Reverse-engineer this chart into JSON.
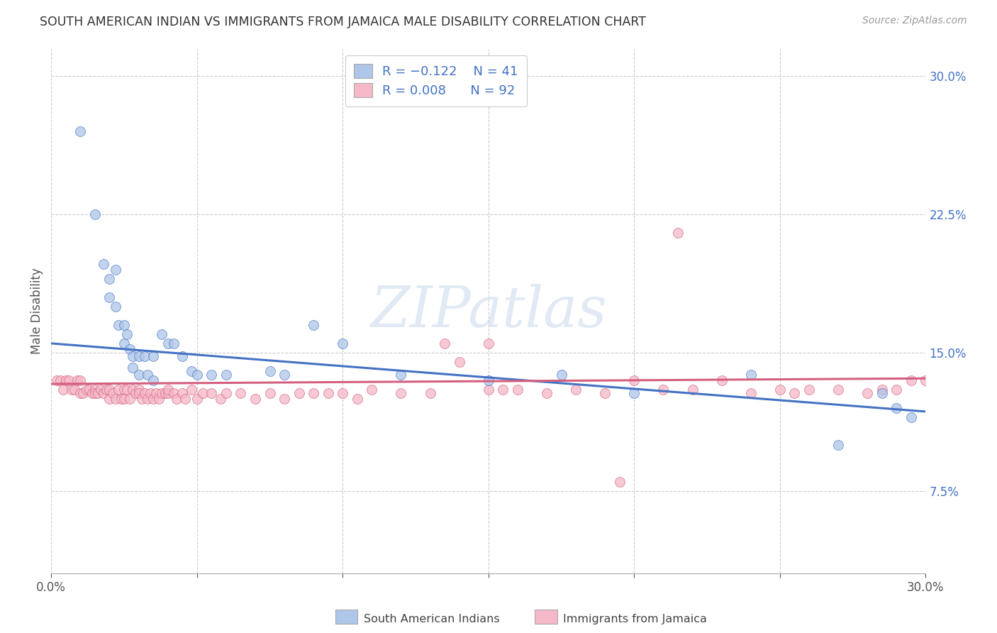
{
  "title": "SOUTH AMERICAN INDIAN VS IMMIGRANTS FROM JAMAICA MALE DISABILITY CORRELATION CHART",
  "source": "Source: ZipAtlas.com",
  "ylabel": "Male Disability",
  "xlim": [
    0.0,
    0.3
  ],
  "ylim": [
    0.03,
    0.315
  ],
  "yticks": [
    0.075,
    0.15,
    0.225,
    0.3
  ],
  "ytick_labels": [
    "7.5%",
    "15.0%",
    "22.5%",
    "30.0%"
  ],
  "xticks": [
    0.0,
    0.05,
    0.1,
    0.15,
    0.2,
    0.25,
    0.3
  ],
  "color_blue": "#aec6e8",
  "color_pink": "#f5b8c8",
  "line_color_blue": "#4472c4",
  "line_color_pink": "#d45f7e",
  "watermark": "ZIPatlas",
  "legend_label1": "South American Indians",
  "legend_label2": "Immigrants from Jamaica",
  "blue_line": [
    0.155,
    0.118
  ],
  "pink_line": [
    0.133,
    0.136
  ],
  "blue_x": [
    0.01,
    0.015,
    0.018,
    0.02,
    0.02,
    0.022,
    0.022,
    0.023,
    0.025,
    0.025,
    0.026,
    0.027,
    0.028,
    0.028,
    0.03,
    0.03,
    0.032,
    0.033,
    0.035,
    0.035,
    0.038,
    0.04,
    0.042,
    0.045,
    0.048,
    0.05,
    0.055,
    0.06,
    0.075,
    0.08,
    0.09,
    0.1,
    0.12,
    0.15,
    0.175,
    0.2,
    0.24,
    0.27,
    0.285,
    0.29,
    0.295
  ],
  "blue_y": [
    0.27,
    0.225,
    0.198,
    0.19,
    0.18,
    0.195,
    0.175,
    0.165,
    0.165,
    0.155,
    0.16,
    0.152,
    0.148,
    0.142,
    0.148,
    0.138,
    0.148,
    0.138,
    0.148,
    0.135,
    0.16,
    0.155,
    0.155,
    0.148,
    0.14,
    0.138,
    0.138,
    0.138,
    0.14,
    0.138,
    0.165,
    0.155,
    0.138,
    0.135,
    0.138,
    0.128,
    0.138,
    0.1,
    0.128,
    0.12,
    0.115
  ],
  "pink_x": [
    0.002,
    0.003,
    0.004,
    0.005,
    0.006,
    0.007,
    0.008,
    0.009,
    0.01,
    0.01,
    0.011,
    0.012,
    0.013,
    0.014,
    0.015,
    0.015,
    0.016,
    0.017,
    0.018,
    0.019,
    0.02,
    0.02,
    0.021,
    0.022,
    0.023,
    0.024,
    0.025,
    0.025,
    0.026,
    0.027,
    0.028,
    0.029,
    0.03,
    0.03,
    0.031,
    0.032,
    0.033,
    0.034,
    0.035,
    0.036,
    0.037,
    0.038,
    0.039,
    0.04,
    0.04,
    0.042,
    0.043,
    0.045,
    0.046,
    0.048,
    0.05,
    0.052,
    0.055,
    0.058,
    0.06,
    0.065,
    0.07,
    0.075,
    0.08,
    0.085,
    0.09,
    0.095,
    0.1,
    0.105,
    0.11,
    0.12,
    0.13,
    0.135,
    0.14,
    0.15,
    0.155,
    0.16,
    0.17,
    0.18,
    0.19,
    0.2,
    0.21,
    0.22,
    0.23,
    0.24,
    0.25,
    0.255,
    0.26,
    0.27,
    0.28,
    0.285,
    0.29,
    0.295,
    0.3,
    0.15,
    0.195,
    0.215
  ],
  "pink_y": [
    0.135,
    0.135,
    0.13,
    0.135,
    0.135,
    0.13,
    0.13,
    0.135,
    0.135,
    0.128,
    0.128,
    0.13,
    0.13,
    0.128,
    0.13,
    0.128,
    0.128,
    0.13,
    0.128,
    0.13,
    0.13,
    0.125,
    0.128,
    0.125,
    0.13,
    0.125,
    0.13,
    0.125,
    0.13,
    0.125,
    0.13,
    0.128,
    0.13,
    0.128,
    0.125,
    0.128,
    0.125,
    0.128,
    0.125,
    0.128,
    0.125,
    0.128,
    0.128,
    0.128,
    0.13,
    0.128,
    0.125,
    0.128,
    0.125,
    0.13,
    0.125,
    0.128,
    0.128,
    0.125,
    0.128,
    0.128,
    0.125,
    0.128,
    0.125,
    0.128,
    0.128,
    0.128,
    0.128,
    0.125,
    0.13,
    0.128,
    0.128,
    0.155,
    0.145,
    0.13,
    0.13,
    0.13,
    0.128,
    0.13,
    0.128,
    0.135,
    0.13,
    0.13,
    0.135,
    0.128,
    0.13,
    0.128,
    0.13,
    0.13,
    0.128,
    0.13,
    0.13,
    0.135,
    0.135,
    0.155,
    0.08,
    0.215
  ]
}
